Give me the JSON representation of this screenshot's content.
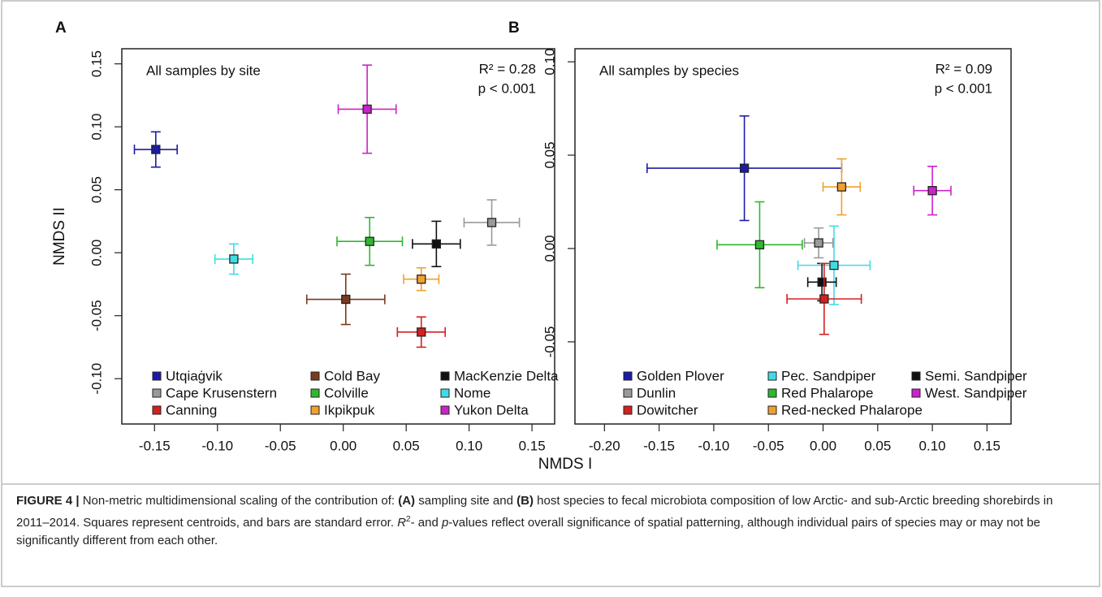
{
  "xlabel": "NMDS I",
  "chart_data": [
    {
      "type": "scatter",
      "panel_label": "A",
      "title": "All samples by site",
      "ylabel": "NMDS II",
      "annotations": [
        "R² = 0.28",
        "p < 0.001"
      ],
      "xlim": [
        -0.176,
        0.168
      ],
      "ylim": [
        -0.136,
        0.162
      ],
      "xticks": [
        {
          "value": -0.15,
          "label": "-0.15"
        },
        {
          "value": -0.1,
          "label": "-0.10"
        },
        {
          "value": -0.05,
          "label": "-0.05"
        },
        {
          "value": 0,
          "label": "0.00"
        },
        {
          "value": 0.05,
          "label": "0.05"
        },
        {
          "value": 0.1,
          "label": "0.10"
        },
        {
          "value": 0.15,
          "label": "0.15"
        }
      ],
      "yticks": [
        {
          "value": -0.1,
          "label": "-0.10"
        },
        {
          "value": -0.05,
          "label": "-0.05"
        },
        {
          "value": 0,
          "label": "0.00"
        },
        {
          "value": 0.05,
          "label": "0.05"
        },
        {
          "value": 0.1,
          "label": "0.10"
        },
        {
          "value": 0.15,
          "label": "0.15"
        }
      ],
      "series": [
        {
          "name": "Utqiaġvik",
          "color": "#1c1ca6",
          "x": [
            -0.149
          ],
          "values": [
            0.082
          ],
          "xerr": [
            0.017
          ],
          "yerr": [
            0.014
          ]
        },
        {
          "name": "Cold Bay",
          "color": "#7a3a1c",
          "x": [
            0.002
          ],
          "values": [
            -0.037
          ],
          "xerr": [
            0.031
          ],
          "yerr": [
            0.02
          ]
        },
        {
          "name": "MacKenzie Delta",
          "color": "#111111",
          "x": [
            0.074
          ],
          "values": [
            0.007
          ],
          "xerr": [
            0.019
          ],
          "yerr": [
            0.018
          ]
        },
        {
          "name": "Cape Krusenstern",
          "color": "#9a9a9a",
          "x": [
            0.118
          ],
          "values": [
            0.024
          ],
          "xerr": [
            0.022
          ],
          "yerr": [
            0.018
          ]
        },
        {
          "name": "Colville",
          "color": "#2fb82f",
          "x": [
            0.021
          ],
          "values": [
            0.009
          ],
          "xerr": [
            0.026
          ],
          "yerr": [
            0.019
          ]
        },
        {
          "name": "Nome",
          "color": "#40dce6",
          "x": [
            -0.087
          ],
          "values": [
            -0.005
          ],
          "xerr": [
            0.015
          ],
          "yerr": [
            0.012
          ]
        },
        {
          "name": "Canning",
          "color": "#d42020",
          "x": [
            0.062
          ],
          "values": [
            -0.063
          ],
          "xerr": [
            0.019
          ],
          "yerr": [
            0.012
          ]
        },
        {
          "name": "Ikpikpuk",
          "color": "#f0a030",
          "x": [
            0.062
          ],
          "values": [
            -0.021
          ],
          "xerr": [
            0.014
          ],
          "yerr": [
            0.009
          ]
        },
        {
          "name": "Yukon Delta",
          "color": "#cc22cc",
          "x": [
            0.019
          ],
          "values": [
            0.114
          ],
          "xerr": [
            0.023
          ],
          "yerr": [
            0.035
          ]
        }
      ]
    },
    {
      "type": "scatter",
      "panel_label": "B",
      "title": "All samples by species",
      "annotations": [
        "R² = 0.09",
        "p < 0.001"
      ],
      "xlim": [
        -0.227,
        0.172
      ],
      "ylim": [
        -0.094,
        0.107
      ],
      "xticks": [
        {
          "value": -0.2,
          "label": "-0.20"
        },
        {
          "value": -0.15,
          "label": "-0.15"
        },
        {
          "value": -0.1,
          "label": "-0.10"
        },
        {
          "value": -0.05,
          "label": "-0.05"
        },
        {
          "value": 0,
          "label": "0.00"
        },
        {
          "value": 0.05,
          "label": "0.05"
        },
        {
          "value": 0.1,
          "label": "0.10"
        },
        {
          "value": 0.15,
          "label": "0.15"
        }
      ],
      "yticks": [
        {
          "value": -0.05,
          "label": "-0.05"
        },
        {
          "value": 0,
          "label": "0.00"
        },
        {
          "value": 0.05,
          "label": "0.05"
        },
        {
          "value": 0.1,
          "label": "0.10"
        }
      ],
      "series": [
        {
          "name": "Golden Plover",
          "color": "#1c1ca6",
          "x": [
            -0.072
          ],
          "values": [
            0.043
          ],
          "xerr": [
            0.089
          ],
          "yerr": [
            0.028
          ]
        },
        {
          "name": "Pec. Sandpiper",
          "color": "#40dce6",
          "x": [
            0.01
          ],
          "values": [
            -0.009
          ],
          "xerr": [
            0.033
          ],
          "yerr": [
            0.021
          ]
        },
        {
          "name": "Semi. Sandpiper",
          "color": "#111111",
          "x": [
            -0.001
          ],
          "values": [
            -0.018
          ],
          "xerr": [
            0.013
          ],
          "yerr": [
            0.01
          ]
        },
        {
          "name": "Dunlin",
          "color": "#9a9a9a",
          "x": [
            -0.004
          ],
          "values": [
            0.003
          ],
          "xerr": [
            0.013
          ],
          "yerr": [
            0.008
          ]
        },
        {
          "name": "Red Phalarope",
          "color": "#2fb82f",
          "x": [
            -0.058
          ],
          "values": [
            0.002
          ],
          "xerr": [
            0.039
          ],
          "yerr": [
            0.023
          ]
        },
        {
          "name": "West. Sandpiper",
          "color": "#cc22cc",
          "x": [
            0.1
          ],
          "values": [
            0.031
          ],
          "xerr": [
            0.017
          ],
          "yerr": [
            0.013
          ]
        },
        {
          "name": "Dowitcher",
          "color": "#d42020",
          "x": [
            0.001
          ],
          "values": [
            -0.027
          ],
          "xerr": [
            0.034
          ],
          "yerr": [
            0.019
          ]
        },
        {
          "name": "Red-necked Phalarope",
          "color": "#f0a030",
          "x": [
            0.017
          ],
          "values": [
            0.033
          ],
          "xerr": [
            0.017
          ],
          "yerr": [
            0.015
          ]
        }
      ]
    }
  ],
  "caption": [
    {
      "text": "FIGURE 4 |",
      "style": "bold"
    },
    {
      "text": " Non-metric multidimensional scaling of the contribution of: ",
      "style": "normal"
    },
    {
      "text": "(A)",
      "style": "bold"
    },
    {
      "text": " sampling site and ",
      "style": "normal"
    },
    {
      "text": "(B)",
      "style": "bold"
    },
    {
      "text": " host species to fecal microbiota composition of low Arctic- and sub-Arctic breeding shorebirds in 2011–2014. Squares represent centroids, and bars are standard error. ",
      "style": "normal"
    },
    {
      "text": "R",
      "style": "italic"
    },
    {
      "text": "2",
      "style": "sup"
    },
    {
      "text": "- and ",
      "style": "normal"
    },
    {
      "text": "p",
      "style": "italic"
    },
    {
      "text": "-values reflect overall significance of spatial patterning, although individual pairs of species may or may not be significantly different from each other.",
      "style": "normal"
    }
  ]
}
